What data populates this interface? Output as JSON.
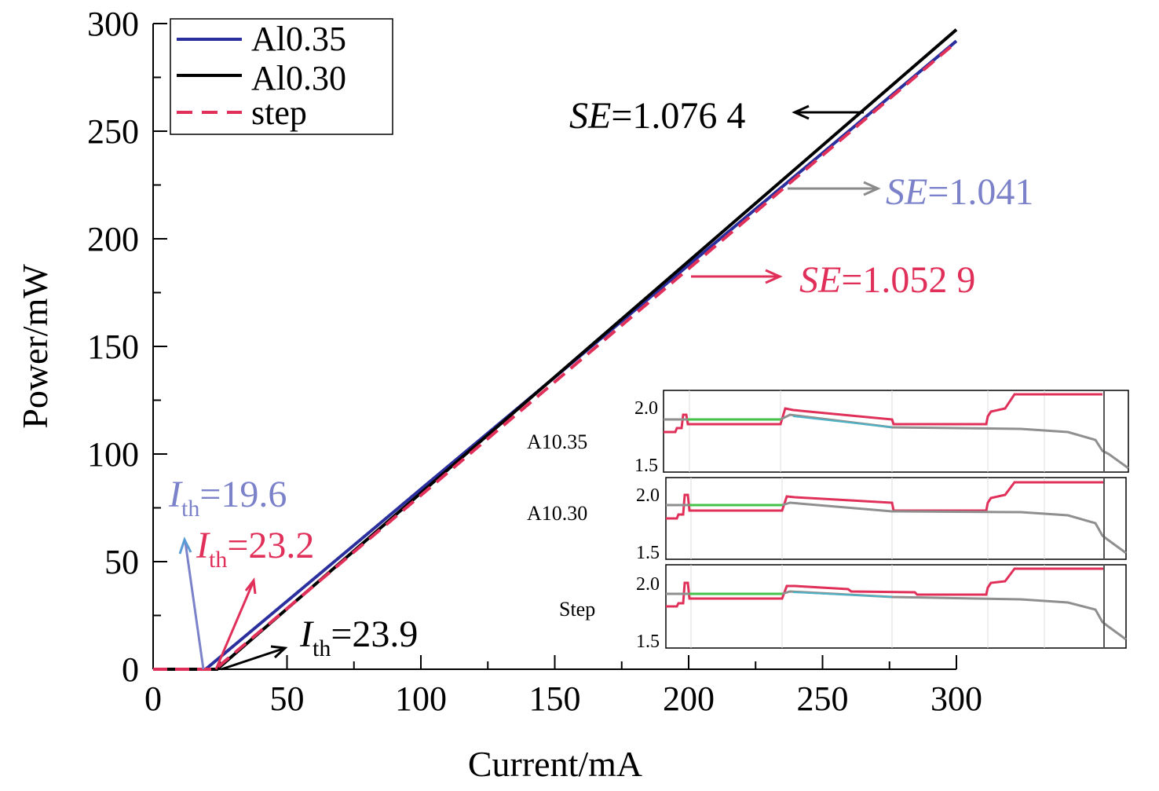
{
  "chart_data": {
    "type": "line",
    "xlabel": "Current/mA",
    "ylabel": "Power/mW",
    "xlim": [
      0,
      300
    ],
    "ylim": [
      0,
      300
    ],
    "xticks": [
      "0",
      "50",
      "100",
      "150",
      "200",
      "250",
      "300"
    ],
    "yticks": [
      "0",
      "50",
      "100",
      "150",
      "200",
      "250",
      "300"
    ],
    "legend_position": "top-left",
    "series": [
      {
        "name": "Al0.35",
        "color": "#2b2f9e",
        "dash": "solid",
        "x": [
          0,
          19.6,
          50,
          100,
          150,
          200,
          250,
          300
        ],
        "y": [
          0,
          0,
          31.6,
          83.7,
          135.7,
          187.8,
          239.8,
          291.9
        ]
      },
      {
        "name": "Al0.30",
        "color": "#000000",
        "dash": "solid",
        "x": [
          0,
          23.9,
          50,
          100,
          150,
          200,
          250,
          300
        ],
        "y": [
          0,
          0,
          28.1,
          81.9,
          135.8,
          189.6,
          243.4,
          297.2
        ]
      },
      {
        "name": "step",
        "color": "#e0305a",
        "dash": "dashed",
        "x": [
          0,
          23.2,
          50,
          100,
          150,
          200,
          250,
          300
        ],
        "y": [
          0,
          0,
          28.2,
          80.8,
          133.5,
          186.1,
          238.8,
          291.4
        ]
      }
    ],
    "annotations": [
      {
        "label": "SE",
        "value": "=1.076 4",
        "color": "#000000"
      },
      {
        "label": "SE",
        "value": "=1.041",
        "color": "#7b82c9"
      },
      {
        "label": "SE",
        "value": "=1.052 9",
        "color": "#e0305a"
      },
      {
        "label": "I",
        "sub": "th",
        "value": "=19.6",
        "color": "#7b82c9"
      },
      {
        "label": "I",
        "sub": "th",
        "value": "=23.2",
        "color": "#e0305a"
      },
      {
        "label": "I",
        "sub": "th",
        "value": "=23.9",
        "color": "#000000"
      }
    ],
    "inset": {
      "panels": [
        {
          "name": "A10.35",
          "yticks": [
            "2.0",
            "1.5"
          ]
        },
        {
          "name": "A10.30",
          "yticks": [
            "2.0",
            "1.5"
          ]
        },
        {
          "name": "Step",
          "yticks": [
            "2.0",
            "1.5"
          ]
        }
      ]
    }
  }
}
